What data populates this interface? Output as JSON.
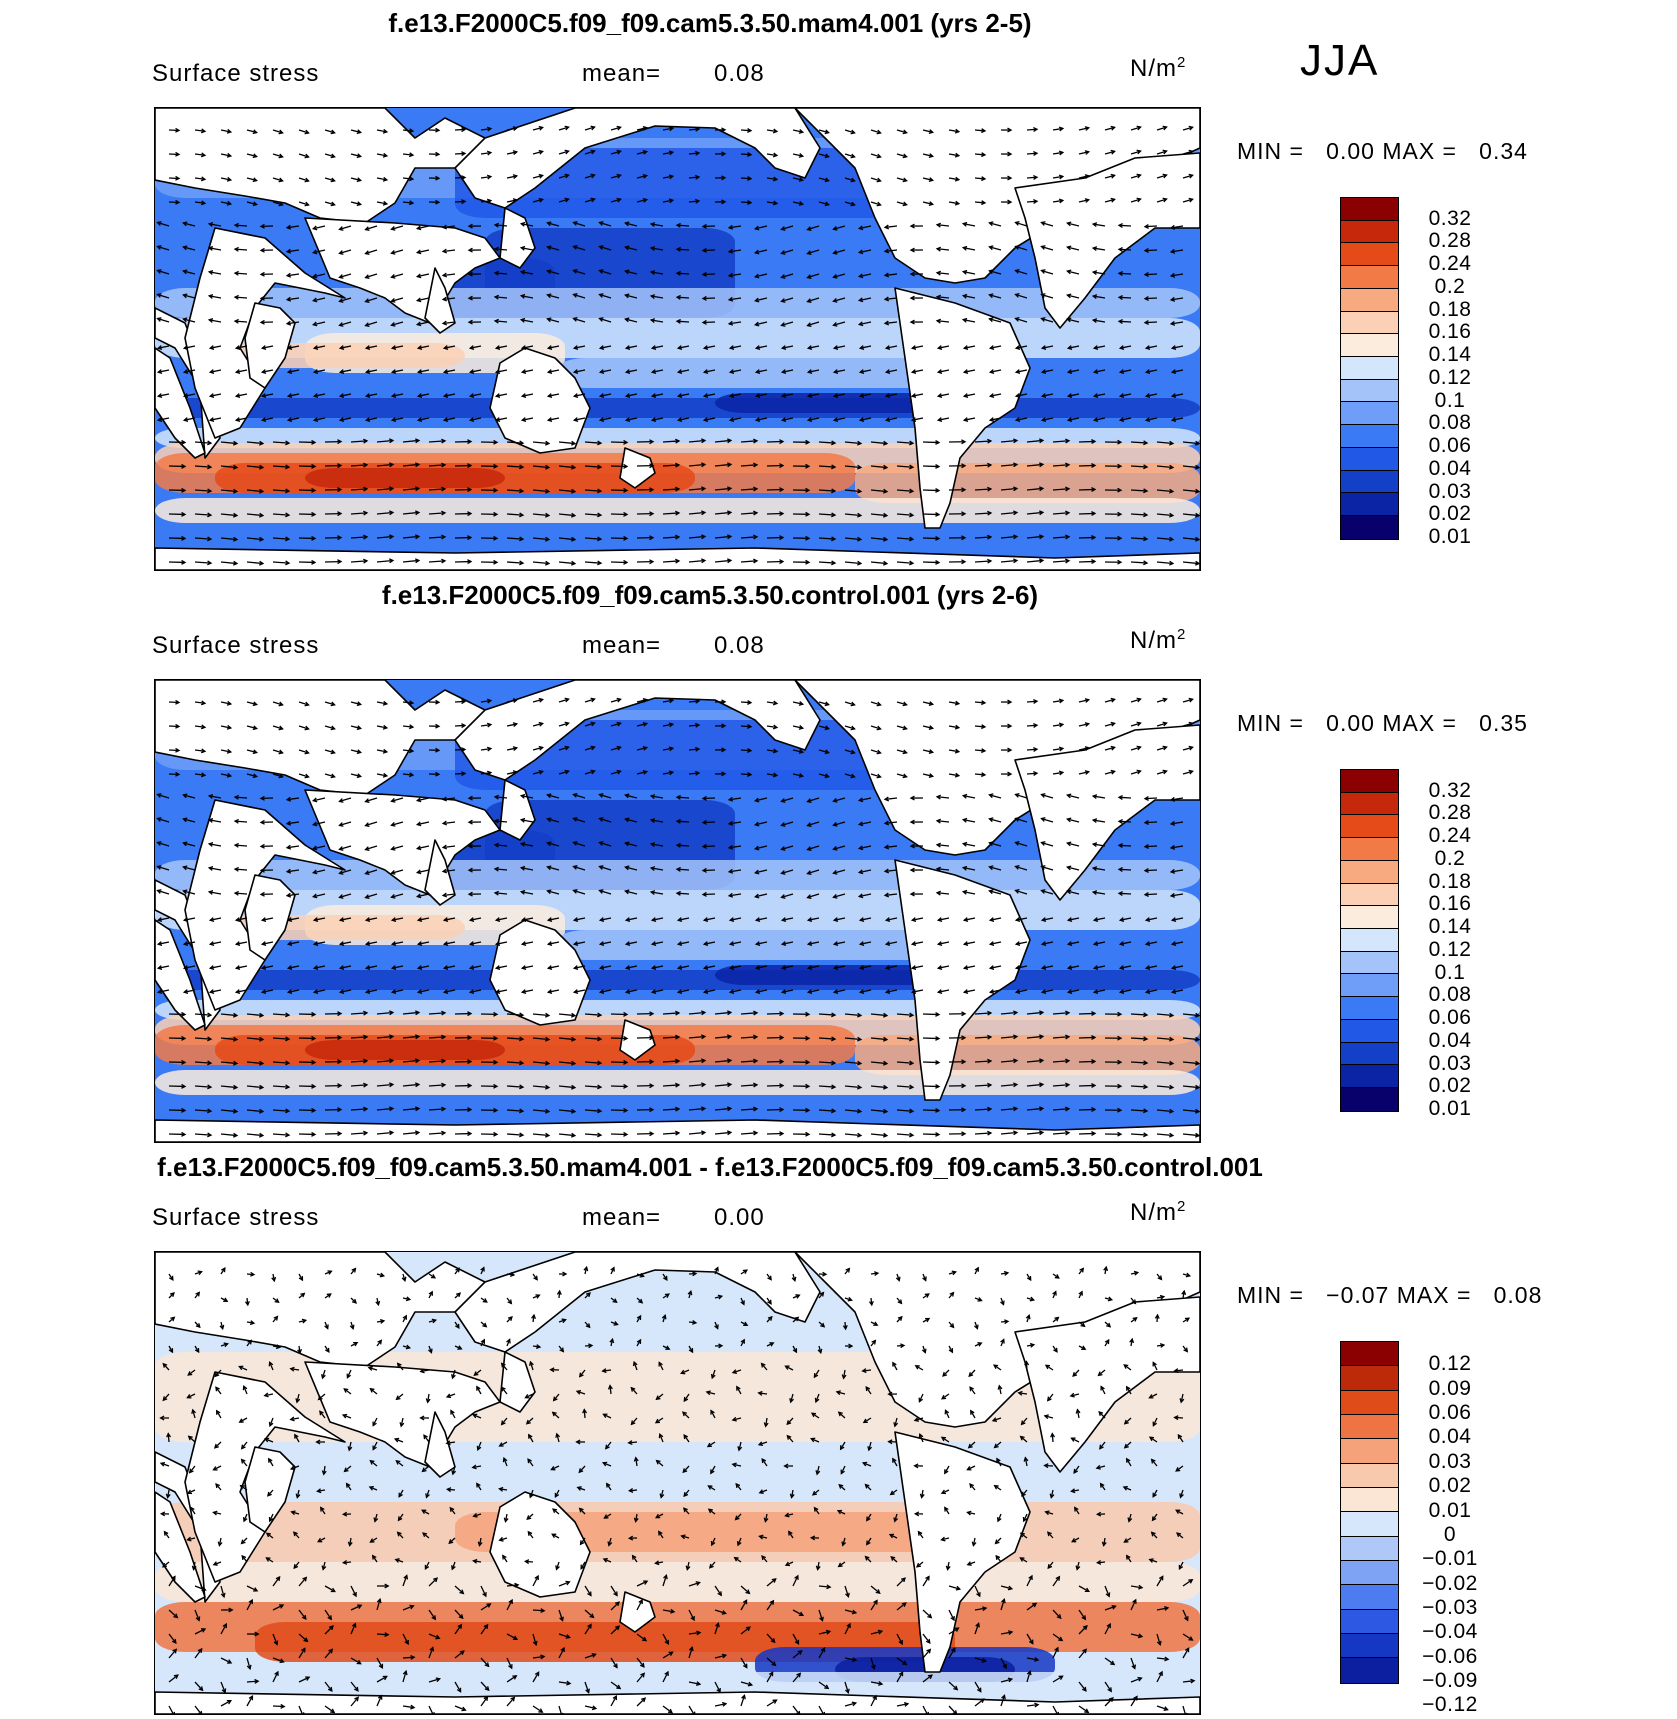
{
  "season": "JJA",
  "colors": {
    "seq": [
      "#08006b",
      "#0b24a6",
      "#1440c8",
      "#2158e6",
      "#3a7af4",
      "#6e9ef7",
      "#a4c4f9",
      "#d3e6fb",
      "#fcecdd",
      "#fbd0b4",
      "#f7a97f",
      "#f27a47",
      "#e54a19",
      "#c6280b",
      "#8b0000"
    ],
    "diff": [
      "#0b1fa0",
      "#1537c4",
      "#2c58e4",
      "#4d7bf0",
      "#7ea3f5",
      "#aec8f8",
      "#d6e6fb",
      "#fbe6d6",
      "#f9c9ad",
      "#f5a27a",
      "#ef7443",
      "#e04b1a",
      "#bd2a0a",
      "#8b0000"
    ],
    "land": "#ffffff",
    "frame": "#000000"
  },
  "panels": [
    {
      "title": "f.e13.F2000C5.f09_f09.cam5.3.50.mam4.001 (yrs 2-5)",
      "variable": "Surface stress",
      "mean_label": "mean=",
      "mean_value": "0.08",
      "units_base": "N/m",
      "units_exp": "2",
      "min_label": "MIN =",
      "min_value": "0.00",
      "max_label": "MAX =",
      "max_value": "0.34",
      "colorbar_labels": [
        "0.32",
        "0.28",
        "0.24",
        "0.2",
        "0.18",
        "0.16",
        "0.14",
        "0.12",
        "0.1",
        "0.08",
        "0.06",
        "0.04",
        "0.03",
        "0.02",
        "0.01"
      ]
    },
    {
      "title": "f.e13.F2000C5.f09_f09.cam5.3.50.control.001 (yrs 2-6)",
      "variable": "Surface stress",
      "mean_label": "mean=",
      "mean_value": "0.08",
      "units_base": "N/m",
      "units_exp": "2",
      "min_label": "MIN =",
      "min_value": "0.00",
      "max_label": "MAX =",
      "max_value": "0.35",
      "colorbar_labels": [
        "0.32",
        "0.28",
        "0.24",
        "0.2",
        "0.18",
        "0.16",
        "0.14",
        "0.12",
        "0.1",
        "0.08",
        "0.06",
        "0.04",
        "0.03",
        "0.02",
        "0.01"
      ]
    },
    {
      "title": "f.e13.F2000C5.f09_f09.cam5.3.50.mam4.001 - f.e13.F2000C5.f09_f09.cam5.3.50.control.001",
      "variable": "Surface stress",
      "mean_label": "mean=",
      "mean_value": "0.00",
      "units_base": "N/m",
      "units_exp": "2",
      "min_label": "MIN =",
      "min_value": "−0.07",
      "max_label": "MAX =",
      "max_value": "0.08",
      "colorbar_labels": [
        "0.12",
        "0.09",
        "0.06",
        "0.04",
        "0.03",
        "0.02",
        "0.01",
        "0",
        "−0.01",
        "−0.02",
        "−0.03",
        "−0.04",
        "−0.06",
        "−0.09",
        "−0.12"
      ]
    }
  ]
}
